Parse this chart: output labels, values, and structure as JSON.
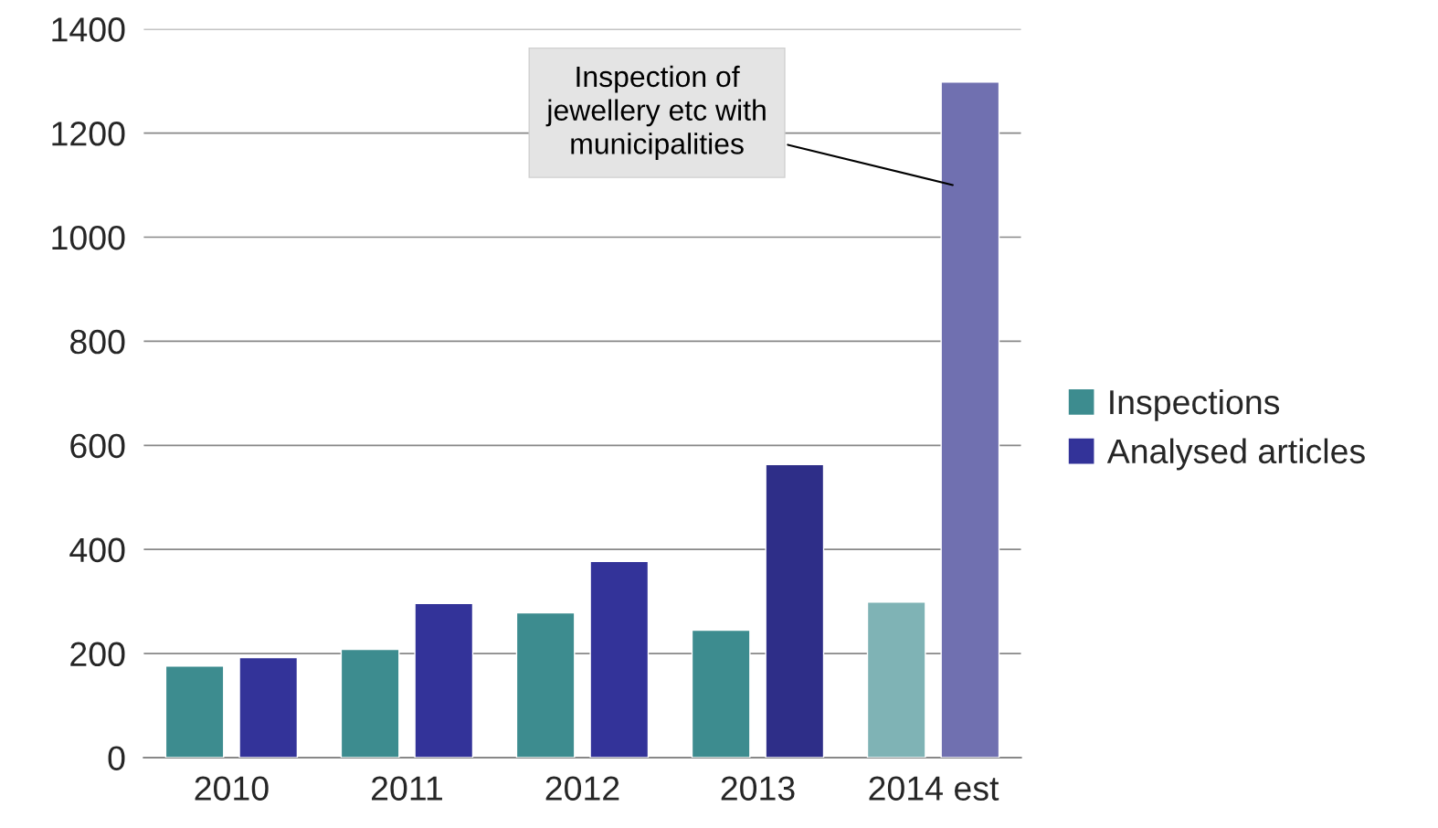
{
  "chart_data": {
    "type": "bar",
    "categories": [
      "2010",
      "2011",
      "2012",
      "2013",
      "2014 est"
    ],
    "series": [
      {
        "name": "Inspections",
        "color": "#3d8c8f",
        "colors": [
          "#3d8c8f",
          "#3d8c8f",
          "#3d8c8f",
          "#3d8c8f",
          "#7fb3b5"
        ],
        "values": [
          176,
          208,
          278,
          245,
          299
        ]
      },
      {
        "name": "Analysed articles",
        "color": "#333399",
        "colors": [
          "#333399",
          "#333399",
          "#333399",
          "#2e2e88",
          "#7070b0"
        ],
        "values": [
          192,
          296,
          377,
          563,
          1298
        ]
      }
    ],
    "ylim": [
      0,
      1400
    ],
    "yticks": [
      0,
      200,
      400,
      600,
      800,
      1000,
      1200,
      1400
    ],
    "grid": "y",
    "legend": "right",
    "annotations": [
      "Inspection of\njewellery etc with\nmunicipalities"
    ]
  }
}
